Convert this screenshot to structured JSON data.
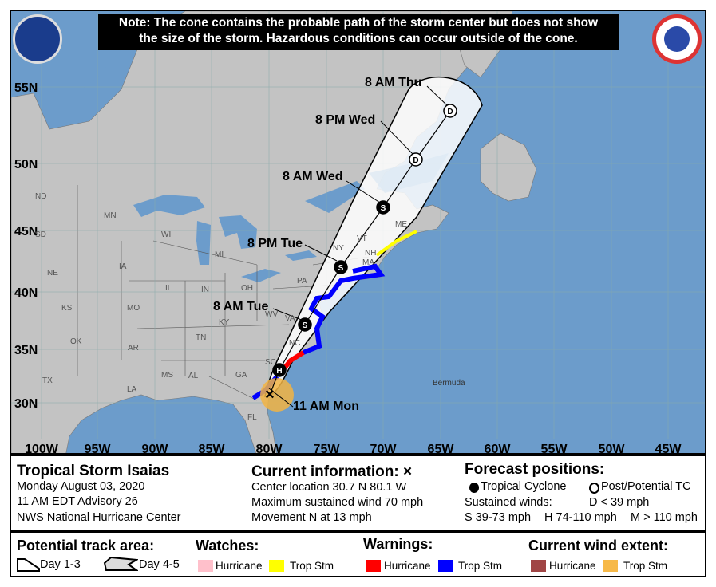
{
  "note": {
    "line1": "Note: The cone contains the probable path of the storm center but does not show",
    "line2": "the size of the storm. Hazardous conditions can occur outside of the cone."
  },
  "logos": {
    "left": "NOAA",
    "right": "National Weather Service"
  },
  "map": {
    "colors": {
      "ocean": "#6c9ccb",
      "land": "#c3c3c3",
      "cone": "#ffffff",
      "hurricane_warning": "#ff0000",
      "ts_warning": "#0000ff",
      "ts_watch": "#ffff00",
      "ts_wind": "#f2b443"
    },
    "lat_labels": [
      "55N",
      "50N",
      "45N",
      "40N",
      "35N",
      "30N"
    ],
    "lon_labels": [
      "100W",
      "95W",
      "90W",
      "85W",
      "80W",
      "75W",
      "70W",
      "65W",
      "60W",
      "55W",
      "50W",
      "45W"
    ],
    "states": [
      "ND",
      "SD",
      "MN",
      "WI",
      "MI",
      "NE",
      "IA",
      "IL",
      "IN",
      "OH",
      "PA",
      "KS",
      "MO",
      "KY",
      "WV",
      "VA",
      "OK",
      "AR",
      "TN",
      "NC",
      "SC",
      "TX",
      "LA",
      "MS",
      "AL",
      "GA",
      "FL",
      "NY",
      "VT",
      "NH",
      "MA",
      "ME"
    ],
    "places": {
      "bermuda": "Bermuda"
    },
    "track": [
      {
        "time": "11 AM Mon",
        "symbol": "X"
      },
      {
        "time": "",
        "symbol": "H"
      },
      {
        "time": "8 AM Tue",
        "symbol": "S"
      },
      {
        "time": "8 PM Tue",
        "symbol": "S"
      },
      {
        "time": "8 AM Wed",
        "symbol": "S"
      },
      {
        "time": "8 PM Wed",
        "symbol": "D"
      },
      {
        "time": "8 AM Thu",
        "symbol": "D"
      }
    ]
  },
  "info": {
    "storm_name": "Tropical Storm Isaias",
    "date": "Monday August 03, 2020",
    "advisory": "11 AM EDT Advisory 26",
    "center": "NWS National Hurricane Center",
    "current_title": "Current information: ×",
    "location": "Center location 30.7 N 80.1 W",
    "max_wind": "Maximum sustained wind 70 mph",
    "movement": "Movement N at 13 mph",
    "forecast_title": "Forecast positions:",
    "tc": "Tropical Cyclone",
    "post_tc": "Post/Potential TC",
    "sustained": "Sustained winds:",
    "d": "D < 39 mph",
    "s": "S 39-73 mph",
    "hh": "H 74-110 mph",
    "m": "M > 110 mph"
  },
  "legend": {
    "track_title": "Potential track area:",
    "day13": "Day 1-3",
    "day45": "Day 4-5",
    "watches_title": "Watches:",
    "warnings_title": "Warnings:",
    "wind_title": "Current wind extent:",
    "hurricane": "Hurricane",
    "trop_stm": "Trop Stm",
    "colors": {
      "hurricane_watch": "#ffc0cb",
      "ts_watch": "#ffff00",
      "hurricane_warning": "#ff0000",
      "ts_warning": "#0000ff",
      "hurricane_wind": "#a04545",
      "ts_wind": "#f7b948"
    }
  }
}
